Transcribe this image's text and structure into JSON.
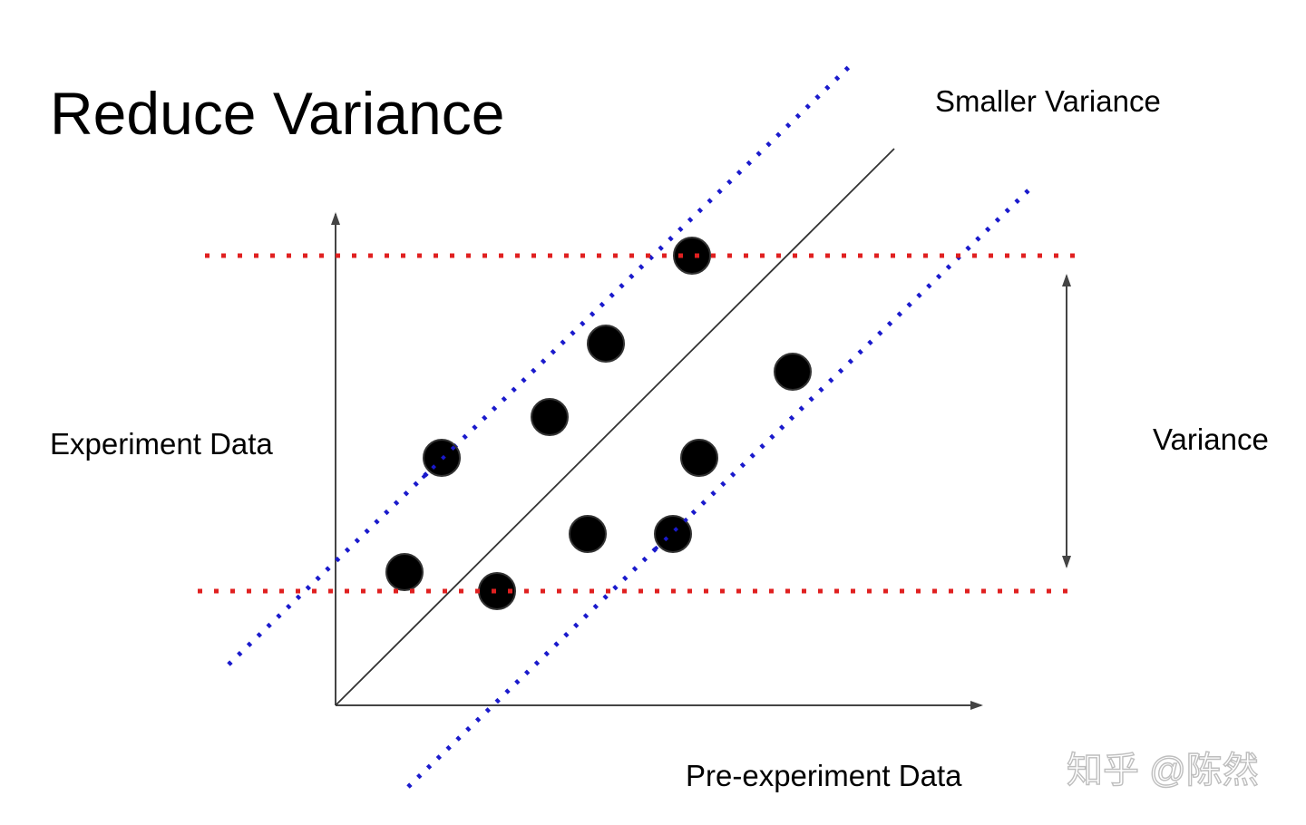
{
  "title": "Reduce Variance",
  "labels": {
    "smaller_variance": "Smaller Variance",
    "variance": "Variance",
    "y_axis": "Experiment Data",
    "x_axis": "Pre-experiment Data"
  },
  "watermark": "知乎 @陈然",
  "colors": {
    "axes": "#444444",
    "diagonal": "#333333",
    "band": "#1a1acc",
    "variance_lines": "#e02020",
    "points": "#000000"
  },
  "points_count": 10
}
